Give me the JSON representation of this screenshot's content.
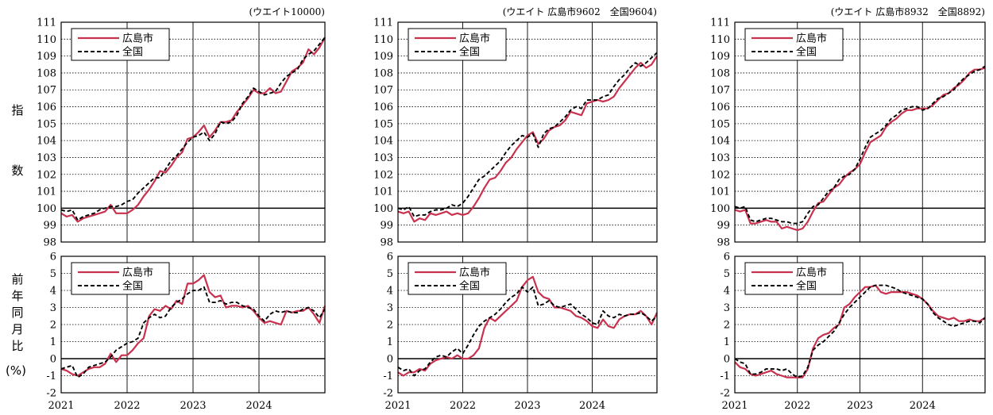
{
  "ylabels": {
    "index_chars": [
      "指",
      "数"
    ],
    "yoy_chars": [
      "前",
      "年",
      "同",
      "月",
      "比"
    ],
    "yoy_unit": "(%)"
  },
  "colors": {
    "hiroshima": "#c8324e",
    "national": "#000000",
    "grid": "#000000"
  },
  "chart_data": [
    {
      "type": "line",
      "weight_note": "(ウエイト10000)",
      "years": [
        "2021",
        "2022",
        "2023",
        "2024"
      ],
      "index": {
        "ylim": [
          98,
          111
        ],
        "yticks": [
          "98",
          "99",
          "100",
          "101",
          "102",
          "103",
          "104",
          "105",
          "106",
          "107",
          "108",
          "109",
          "110",
          "111"
        ],
        "series": [
          {
            "name": "広島市",
            "style": "solid",
            "values": [
              99.7,
              99.5,
              99.6,
              99.2,
              99.4,
              99.5,
              99.6,
              99.7,
              99.8,
              100.2,
              99.7,
              99.7,
              99.7,
              99.9,
              100.2,
              100.7,
              101.1,
              101.6,
              102.2,
              102.1,
              102.5,
              103.0,
              103.3,
              104.1,
              104.2,
              104.5,
              104.9,
              104.2,
              104.6,
              105.1,
              105.1,
              105.2,
              105.7,
              106.1,
              106.5,
              107.0,
              106.8,
              106.8,
              107.1,
              106.8,
              106.9,
              107.5,
              108.1,
              108.3,
              108.6,
              109.4,
              109.1,
              109.5,
              110.1
            ]
          },
          {
            "name": "全国",
            "style": "dashed",
            "values": [
              99.9,
              99.8,
              99.9,
              99.3,
              99.5,
              99.6,
              99.7,
              99.9,
              100.0,
              100.1,
              100.1,
              100.2,
              100.4,
              100.5,
              100.9,
              101.2,
              101.5,
              101.8,
              101.8,
              102.3,
              102.8,
              103.1,
              103.5,
              103.9,
              104.2,
              104.3,
              104.5,
              104.0,
              104.4,
              105.1,
              105.0,
              105.1,
              105.5,
              106.2,
              106.6,
              107.1,
              106.9,
              106.7,
              106.8,
              106.9,
              107.4,
              107.8,
              108.0,
              108.2,
              108.8,
              109.1,
              109.3,
              109.7,
              110.1
            ]
          }
        ]
      },
      "yoy": {
        "ylim": [
          -2,
          6
        ],
        "yticks": [
          "-2",
          "-1",
          "0",
          "1",
          "2",
          "3",
          "4",
          "5",
          "6"
        ],
        "series": [
          {
            "name": "広島市",
            "style": "solid",
            "values": [
              -0.6,
              -0.7,
              -0.9,
              -1.0,
              -0.8,
              -0.6,
              -0.5,
              -0.5,
              -0.3,
              0.3,
              -0.2,
              0.2,
              0.2,
              0.5,
              0.9,
              1.2,
              2.5,
              2.9,
              2.8,
              3.1,
              2.9,
              3.4,
              3.2,
              4.4,
              4.4,
              4.6,
              4.9,
              3.9,
              3.6,
              3.7,
              3.0,
              3.1,
              3.1,
              3.0,
              3.1,
              2.8,
              2.4,
              2.1,
              2.2,
              2.1,
              2.0,
              2.8,
              2.7,
              2.8,
              2.8,
              3.0,
              2.6,
              2.1,
              3.1
            ]
          },
          {
            "name": "全国",
            "style": "dashed",
            "values": [
              -0.6,
              -0.5,
              -0.4,
              -1.1,
              -0.9,
              -0.5,
              -0.4,
              -0.3,
              -0.2,
              0.1,
              0.5,
              0.7,
              0.9,
              1.0,
              1.2,
              2.1,
              2.4,
              2.6,
              2.4,
              2.5,
              3.0,
              3.3,
              3.5,
              3.8,
              4.0,
              4.0,
              4.2,
              3.3,
              3.3,
              3.4,
              3.2,
              3.3,
              3.3,
              3.1,
              3.0,
              2.9,
              2.5,
              2.2,
              2.6,
              2.8,
              2.7,
              2.8,
              2.7,
              2.7,
              2.9,
              3.0,
              2.8,
              2.4,
              2.9
            ]
          }
        ]
      }
    },
    {
      "type": "line",
      "weight_note": "(ウエイト 広島市9602　全国9604)",
      "years": [
        "2021",
        "2022",
        "2023",
        "2024"
      ],
      "index": {
        "ylim": [
          98,
          111
        ],
        "yticks": [
          "98",
          "99",
          "100",
          "101",
          "102",
          "103",
          "104",
          "105",
          "106",
          "107",
          "108",
          "109",
          "110",
          "111"
        ],
        "series": [
          {
            "name": "広島市",
            "style": "solid",
            "values": [
              99.8,
              99.7,
              99.8,
              99.2,
              99.4,
              99.3,
              99.7,
              99.6,
              99.7,
              99.8,
              99.6,
              99.7,
              99.6,
              99.7,
              100.1,
              100.6,
              101.2,
              101.7,
              101.8,
              102.2,
              102.7,
              103.0,
              103.5,
              103.9,
              104.3,
              104.5,
              103.8,
              104.1,
              104.6,
              104.8,
              104.9,
              105.2,
              105.7,
              105.6,
              105.5,
              106.2,
              106.3,
              106.4,
              106.3,
              106.4,
              106.6,
              107.1,
              107.5,
              107.9,
              108.3,
              108.6,
              108.3,
              108.5,
              109.0
            ]
          },
          {
            "name": "全国",
            "style": "dashed",
            "values": [
              100.0,
              99.9,
              100.1,
              99.5,
              99.6,
              99.6,
              99.8,
              99.9,
              99.9,
              100.0,
              100.2,
              100.1,
              100.3,
              100.7,
              101.2,
              101.7,
              101.9,
              102.2,
              102.5,
              102.8,
              103.3,
              103.7,
              104.0,
              104.3,
              104.2,
              104.4,
              103.6,
              104.4,
              104.7,
              104.8,
              105.1,
              105.4,
              105.8,
              106.0,
              105.9,
              106.4,
              106.4,
              106.4,
              106.6,
              106.7,
              107.2,
              107.6,
              107.9,
              108.3,
              108.6,
              108.4,
              108.6,
              108.9,
              109.2
            ]
          }
        ]
      },
      "yoy": {
        "ylim": [
          -2,
          6
        ],
        "yticks": [
          "-2",
          "-1",
          "0",
          "1",
          "2",
          "3",
          "4",
          "5",
          "6"
        ],
        "series": [
          {
            "name": "広島市",
            "style": "solid",
            "values": [
              -0.8,
              -1.0,
              -0.8,
              -0.8,
              -0.6,
              -0.7,
              -0.3,
              -0.1,
              0.0,
              0.1,
              0.0,
              0.2,
              0.0,
              0.0,
              0.2,
              0.6,
              1.8,
              2.4,
              2.2,
              2.5,
              2.8,
              3.1,
              3.4,
              4.2,
              4.6,
              4.8,
              3.9,
              3.6,
              3.5,
              3.0,
              3.0,
              2.9,
              2.8,
              2.5,
              2.4,
              2.2,
              1.9,
              1.8,
              2.3,
              1.9,
              1.8,
              2.3,
              2.5,
              2.6,
              2.6,
              2.8,
              2.5,
              2.0,
              2.7
            ]
          },
          {
            "name": "全国",
            "style": "dashed",
            "values": [
              -0.5,
              -0.7,
              -0.6,
              -1.0,
              -0.7,
              -0.6,
              -0.2,
              0.1,
              0.2,
              0.1,
              0.4,
              0.6,
              0.3,
              0.8,
              1.4,
              1.9,
              2.2,
              2.4,
              2.6,
              2.9,
              3.3,
              3.6,
              3.8,
              4.2,
              3.9,
              4.2,
              3.1,
              3.2,
              3.4,
              3.1,
              3.0,
              3.1,
              3.2,
              2.9,
              2.6,
              2.4,
              2.1,
              2.0,
              2.8,
              2.5,
              2.4,
              2.6,
              2.5,
              2.6,
              2.6,
              2.7,
              2.5,
              2.2,
              2.5
            ]
          }
        ]
      }
    },
    {
      "type": "line",
      "weight_note": "(ウエイト 広島市8932　全国8892)",
      "years": [
        "2021",
        "2022",
        "2023",
        "2024"
      ],
      "index": {
        "ylim": [
          98,
          111
        ],
        "yticks": [
          "98",
          "99",
          "100",
          "101",
          "102",
          "103",
          "104",
          "105",
          "106",
          "107",
          "108",
          "109",
          "110",
          "111"
        ],
        "series": [
          {
            "name": "広島市",
            "style": "solid",
            "values": [
              99.9,
              99.8,
              99.9,
              99.1,
              99.1,
              99.2,
              99.3,
              99.2,
              99.2,
              98.8,
              98.9,
              98.8,
              98.7,
              98.8,
              99.2,
              99.8,
              100.3,
              100.4,
              100.8,
              101.2,
              101.4,
              101.8,
              102.1,
              102.3,
              102.6,
              103.3,
              103.9,
              104.1,
              104.3,
              104.8,
              105.1,
              105.3,
              105.6,
              105.8,
              105.8,
              105.9,
              105.9,
              105.9,
              106.1,
              106.4,
              106.7,
              106.8,
              107.1,
              107.3,
              107.6,
              108.0,
              108.2,
              108.2,
              108.3
            ]
          },
          {
            "name": "全国",
            "style": "dashed",
            "values": [
              100.1,
              100.0,
              100.1,
              99.3,
              99.2,
              99.3,
              99.4,
              99.4,
              99.3,
              99.2,
              99.2,
              99.1,
              99.1,
              99.2,
              99.7,
              100.1,
              100.2,
              100.6,
              101.0,
              101.2,
              101.7,
              101.9,
              102.0,
              102.3,
              102.9,
              103.6,
              104.2,
              104.4,
              104.6,
              104.9,
              105.3,
              105.5,
              105.8,
              105.9,
              106.0,
              106.0,
              105.8,
              105.9,
              106.2,
              106.5,
              106.6,
              106.8,
              107.0,
              107.4,
              107.7,
              107.9,
              108.1,
              108.2,
              108.4
            ]
          }
        ]
      },
      "yoy": {
        "ylim": [
          -2,
          6
        ],
        "yticks": [
          "-2",
          "-1",
          "0",
          "1",
          "2",
          "3",
          "4",
          "5",
          "6"
        ],
        "series": [
          {
            "name": "広島市",
            "style": "solid",
            "values": [
              -0.2,
              -0.5,
              -0.6,
              -0.9,
              -1.0,
              -0.9,
              -0.8,
              -0.7,
              -0.9,
              -1.0,
              -1.1,
              -1.1,
              -1.1,
              -1.1,
              -0.6,
              0.6,
              1.2,
              1.4,
              1.5,
              1.8,
              2.0,
              3.0,
              3.2,
              3.6,
              3.9,
              4.2,
              4.2,
              4.3,
              3.9,
              3.8,
              3.9,
              3.9,
              3.9,
              3.9,
              3.8,
              3.7,
              3.5,
              3.2,
              2.8,
              2.5,
              2.4,
              2.3,
              2.4,
              2.2,
              2.2,
              2.3,
              2.2,
              2.2,
              2.4
            ]
          },
          {
            "name": "全国",
            "style": "dashed",
            "values": [
              0.0,
              -0.2,
              -0.3,
              -0.9,
              -0.9,
              -0.8,
              -0.6,
              -0.6,
              -0.6,
              -0.7,
              -0.6,
              -0.9,
              -1.1,
              -1.0,
              -0.5,
              0.5,
              0.8,
              1.0,
              1.3,
              1.6,
              2.1,
              2.6,
              3.0,
              3.3,
              3.6,
              3.9,
              4.2,
              4.3,
              4.3,
              4.3,
              4.2,
              4.1,
              3.9,
              3.8,
              3.7,
              3.6,
              3.5,
              3.2,
              2.7,
              2.4,
              2.2,
              2.0,
              1.9,
              2.0,
              2.1,
              2.2,
              2.2,
              2.1,
              2.4
            ]
          }
        ]
      }
    }
  ]
}
